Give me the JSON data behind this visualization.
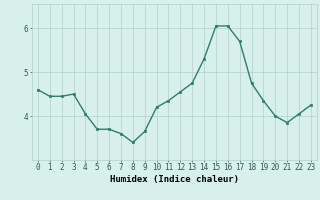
{
  "x": [
    0,
    1,
    2,
    3,
    4,
    5,
    6,
    7,
    8,
    9,
    10,
    11,
    12,
    13,
    14,
    15,
    16,
    17,
    18,
    19,
    20,
    21,
    22,
    23
  ],
  "y": [
    4.6,
    4.45,
    4.45,
    4.5,
    4.05,
    3.7,
    3.7,
    3.6,
    3.4,
    3.65,
    4.2,
    4.35,
    4.55,
    4.75,
    5.3,
    6.05,
    6.05,
    5.7,
    4.75,
    4.35,
    4.0,
    3.85,
    4.05,
    4.25
  ],
  "line_color": "#2e7d6e",
  "marker": "s",
  "marker_size": 1.8,
  "bg_color": "#d8f0ec",
  "grid_color": "#b0d0ca",
  "xlabel": "Humidex (Indice chaleur)",
  "ylim": [
    3.0,
    6.55
  ],
  "xlim": [
    -0.5,
    23.5
  ],
  "yticks": [
    4,
    5,
    6
  ],
  "linewidth": 1.0,
  "xlabel_fontsize": 6.5,
  "tick_fontsize": 5.5
}
